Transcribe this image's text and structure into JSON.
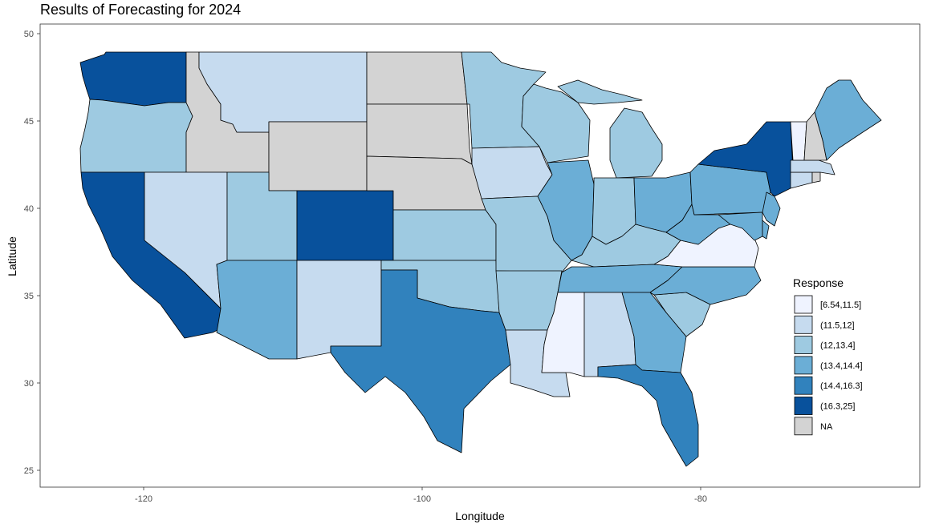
{
  "title": "Results of Forecasting for 2024",
  "axes": {
    "x": {
      "label": "Longitude",
      "ticks": [
        "-120",
        "-100",
        "-80"
      ],
      "tick_values": [
        -120,
        -100,
        -80
      ]
    },
    "y": {
      "label": "Latitude",
      "ticks": [
        "25",
        "30",
        "35",
        "40",
        "45",
        "50"
      ],
      "tick_values": [
        25,
        30,
        35,
        40,
        45,
        50
      ]
    }
  },
  "legend": {
    "title": "Response",
    "placement": "right",
    "items": [
      {
        "label": "[6.54,11.5]",
        "color": "#eff3ff"
      },
      {
        "label": "(11.5,12]",
        "color": "#c6dbef"
      },
      {
        "label": "(12,13.4]",
        "color": "#9ecae1"
      },
      {
        "label": "(13.4,14.4]",
        "color": "#6baed6"
      },
      {
        "label": "(14.4,16.3]",
        "color": "#3182bd"
      },
      {
        "label": "(16.3,25]",
        "color": "#08519c"
      },
      {
        "label": "NA",
        "color": "#d3d3d3"
      }
    ]
  },
  "map_data": {
    "type": "choropleth",
    "region": "contiguous United States",
    "states": [
      {
        "state": "Washington",
        "bin": "(16.3,25]"
      },
      {
        "state": "Oregon",
        "bin": "(12,13.4]"
      },
      {
        "state": "California",
        "bin": "(16.3,25]"
      },
      {
        "state": "Idaho",
        "bin": "NA"
      },
      {
        "state": "Nevada",
        "bin": "(11.5,12]"
      },
      {
        "state": "Montana",
        "bin": "(11.5,12]"
      },
      {
        "state": "Wyoming",
        "bin": "NA"
      },
      {
        "state": "Utah",
        "bin": "(12,13.4]"
      },
      {
        "state": "Arizona",
        "bin": "(13.4,14.4]"
      },
      {
        "state": "Colorado",
        "bin": "(16.3,25]"
      },
      {
        "state": "New Mexico",
        "bin": "(11.5,12]"
      },
      {
        "state": "North Dakota",
        "bin": "NA"
      },
      {
        "state": "South Dakota",
        "bin": "NA"
      },
      {
        "state": "Nebraska",
        "bin": "NA"
      },
      {
        "state": "Kansas",
        "bin": "(12,13.4]"
      },
      {
        "state": "Oklahoma",
        "bin": "(12,13.4]"
      },
      {
        "state": "Texas",
        "bin": "(14.4,16.3]"
      },
      {
        "state": "Minnesota",
        "bin": "(12,13.4]"
      },
      {
        "state": "Iowa",
        "bin": "(11.5,12]"
      },
      {
        "state": "Missouri",
        "bin": "(12,13.4]"
      },
      {
        "state": "Arkansas",
        "bin": "(12,13.4]"
      },
      {
        "state": "Louisiana",
        "bin": "(11.5,12]"
      },
      {
        "state": "Wisconsin",
        "bin": "(12,13.4]"
      },
      {
        "state": "Illinois",
        "bin": "(13.4,14.4]"
      },
      {
        "state": "Michigan",
        "bin": "(12,13.4]"
      },
      {
        "state": "Indiana",
        "bin": "(12,13.4]"
      },
      {
        "state": "Ohio",
        "bin": "(13.4,14.4]"
      },
      {
        "state": "Kentucky",
        "bin": "(12,13.4]"
      },
      {
        "state": "Tennessee",
        "bin": "(13.4,14.4]"
      },
      {
        "state": "Mississippi",
        "bin": "[6.54,11.5]"
      },
      {
        "state": "Alabama",
        "bin": "(11.5,12]"
      },
      {
        "state": "Georgia",
        "bin": "(13.4,14.4]"
      },
      {
        "state": "Florida",
        "bin": "(14.4,16.3]"
      },
      {
        "state": "South Carolina",
        "bin": "(12,13.4]"
      },
      {
        "state": "North Carolina",
        "bin": "(13.4,14.4]"
      },
      {
        "state": "Virginia",
        "bin": "[6.54,11.5]"
      },
      {
        "state": "West Virginia",
        "bin": "(13.4,14.4]"
      },
      {
        "state": "Pennsylvania",
        "bin": "(13.4,14.4]"
      },
      {
        "state": "New York",
        "bin": "(16.3,25]"
      },
      {
        "state": "New Jersey",
        "bin": "(13.4,14.4]"
      },
      {
        "state": "Maryland",
        "bin": "(13.4,14.4]"
      },
      {
        "state": "Delaware",
        "bin": "(13.4,14.4]"
      },
      {
        "state": "Connecticut",
        "bin": "(11.5,12]"
      },
      {
        "state": "Rhode Island",
        "bin": "NA"
      },
      {
        "state": "Massachusetts",
        "bin": "(11.5,12]"
      },
      {
        "state": "Vermont",
        "bin": "[6.54,11.5]"
      },
      {
        "state": "New Hampshire",
        "bin": "NA"
      },
      {
        "state": "Maine",
        "bin": "(13.4,14.4]"
      }
    ]
  }
}
